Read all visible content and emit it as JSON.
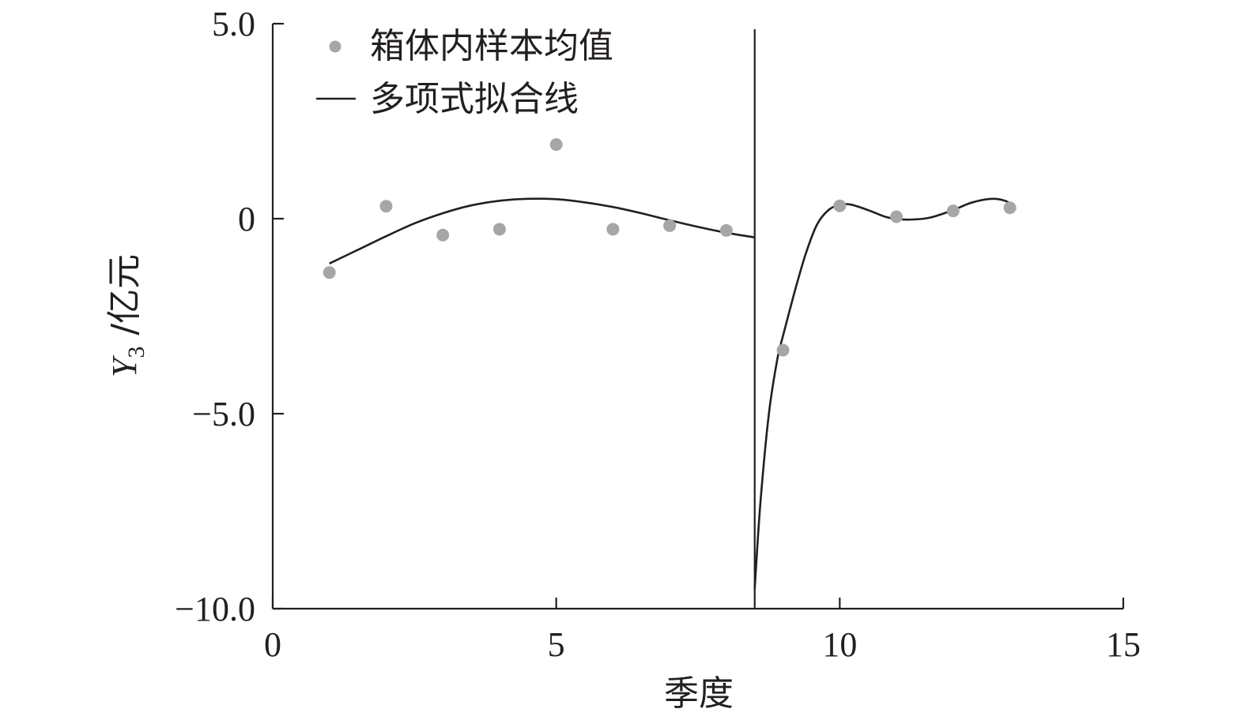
{
  "chart_data": {
    "type": "scatter",
    "title": "",
    "xlabel": "季度",
    "ylabel_main": "Y",
    "ylabel_sub": "3",
    "ylabel_unit": " /亿元",
    "xlim": [
      0,
      15
    ],
    "ylim": [
      -10,
      5
    ],
    "x_ticks": [
      0,
      5,
      10,
      15
    ],
    "x_tick_labels": [
      "0",
      "5",
      "10",
      "15"
    ],
    "y_ticks": [
      -10,
      -5,
      0,
      5
    ],
    "y_tick_labels": [
      "−10.0",
      "−5.0",
      "0",
      "5.0"
    ],
    "grid": false,
    "legend_position": "top-left",
    "cutoff_x": 8.5,
    "series": [
      {
        "name": "箱体内样本均值",
        "kind": "points",
        "color": "#a6a6a6",
        "x": [
          1,
          2,
          3,
          4,
          5,
          6,
          7,
          8,
          9,
          10,
          11,
          12,
          13
        ],
        "y": [
          -1.38,
          0.32,
          -0.42,
          -0.27,
          1.9,
          -0.27,
          -0.18,
          -0.3,
          -3.37,
          0.33,
          0.05,
          0.2,
          0.28
        ]
      },
      {
        "name": "多项式拟合线",
        "kind": "line",
        "color": "#231f20",
        "segments": [
          {
            "x": [
              1,
              1.5,
              2,
              2.5,
              3,
              3.5,
              4,
              4.5,
              5,
              5.5,
              6,
              6.5,
              7,
              7.5,
              8,
              8.5
            ],
            "y": [
              -1.15,
              -0.8,
              -0.45,
              -0.12,
              0.14,
              0.34,
              0.46,
              0.51,
              0.5,
              0.42,
              0.3,
              0.14,
              -0.04,
              -0.21,
              -0.36,
              -0.48
            ]
          },
          {
            "x": [
              8.5,
              8.6,
              8.75,
              8.9,
              9.0,
              9.2,
              9.4,
              9.6,
              9.8,
              10.0,
              10.2,
              10.5,
              10.8,
              11.0,
              11.3,
              11.6,
              12.0,
              12.3,
              12.6,
              12.8,
              13.0,
              13.1
            ],
            "y": [
              -9.5,
              -7.3,
              -5.0,
              -3.6,
              -3.0,
              -1.9,
              -0.9,
              -0.15,
              0.22,
              0.36,
              0.36,
              0.22,
              0.05,
              -0.01,
              -0.02,
              0.03,
              0.22,
              0.4,
              0.5,
              0.5,
              0.4,
              0.22
            ]
          }
        ]
      }
    ]
  }
}
